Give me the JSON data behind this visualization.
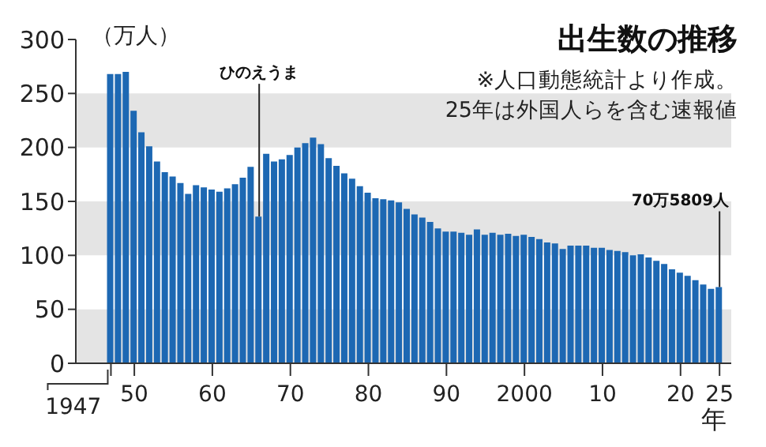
{
  "chart_data": {
    "type": "bar",
    "title": "出生数の推移",
    "ylabel": "（万人）",
    "xlabel": "年",
    "annotations": [
      "※人口動態統計より作成。",
      "25年は外国人らを含む速報値",
      {
        "text": "ひのえうま",
        "x": 1966,
        "y": 136
      },
      {
        "text": "70万5809人",
        "x": 2025,
        "y": 70.5809
      },
      "1947"
    ],
    "x": [
      1947,
      1948,
      1949,
      1950,
      1951,
      1952,
      1953,
      1954,
      1955,
      1956,
      1957,
      1958,
      1959,
      1960,
      1961,
      1962,
      1963,
      1964,
      1965,
      1966,
      1967,
      1968,
      1969,
      1970,
      1971,
      1972,
      1973,
      1974,
      1975,
      1976,
      1977,
      1978,
      1979,
      1980,
      1981,
      1982,
      1983,
      1984,
      1985,
      1986,
      1987,
      1988,
      1989,
      1990,
      1991,
      1992,
      1993,
      1994,
      1995,
      1996,
      1997,
      1998,
      1999,
      2000,
      2001,
      2002,
      2003,
      2004,
      2005,
      2006,
      2007,
      2008,
      2009,
      2010,
      2011,
      2012,
      2013,
      2014,
      2015,
      2016,
      2017,
      2018,
      2019,
      2020,
      2021,
      2022,
      2023,
      2024,
      2025
    ],
    "values": [
      268,
      268,
      270,
      234,
      214,
      201,
      187,
      177,
      173,
      167,
      157,
      165,
      163,
      161,
      159,
      162,
      166,
      172,
      182,
      136,
      194,
      187,
      189,
      193,
      200,
      204,
      209,
      203,
      190,
      183,
      176,
      171,
      164,
      158,
      153,
      152,
      151,
      149,
      143,
      138,
      135,
      131,
      125,
      122,
      122,
      121,
      119,
      124,
      119,
      121,
      119,
      120,
      118,
      119,
      117,
      115,
      112,
      111,
      106,
      109,
      109,
      109,
      107,
      107,
      105,
      104,
      103,
      100,
      101,
      98,
      95,
      92,
      87,
      84,
      81,
      77,
      73,
      69,
      70.5809
    ],
    "color": "#1d68b3",
    "xlim": [
      1942.5,
      2026.5
    ],
    "xticks": [
      {
        "value": 1947,
        "label": null
      },
      {
        "value": 1950,
        "label": "50"
      },
      {
        "value": 1960,
        "label": "60"
      },
      {
        "value": 1970,
        "label": "70"
      },
      {
        "value": 1980,
        "label": "80"
      },
      {
        "value": 1990,
        "label": "90"
      },
      2000,
      {
        "value": 2010,
        "label": "10"
      },
      {
        "value": 2020,
        "label": "20"
      },
      {
        "value": 2025,
        "label": "25"
      }
    ],
    "ylim": [
      0,
      300
    ],
    "yticks": [
      0,
      50,
      100,
      150,
      200,
      250,
      300
    ],
    "bands": [
      {
        "axis": "y",
        "from": 0,
        "to": 50,
        "color": "#e4e4e4"
      },
      {
        "axis": "y",
        "from": 100,
        "to": 150,
        "color": "#e4e4e4"
      },
      {
        "axis": "y",
        "from": 200,
        "to": 250,
        "color": "#e4e4e4"
      }
    ]
  }
}
